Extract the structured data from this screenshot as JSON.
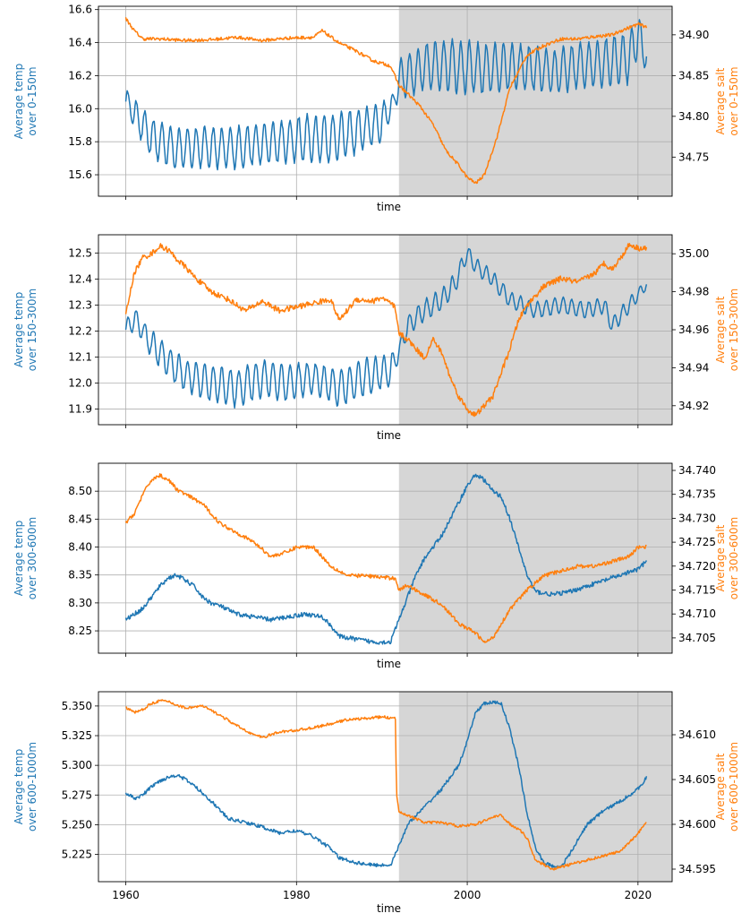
{
  "colors": {
    "temp": "#1f77b4",
    "salt": "#ff7f0e",
    "shade": "#d6d6d6",
    "grid": "#b0b0b0",
    "axis": "#000000"
  },
  "chart_data": [
    {
      "type": "line",
      "xlabel": "time",
      "xlim": [
        1956.8,
        2024.0
      ],
      "xticks": [
        1960,
        1980,
        2000,
        2020
      ],
      "shade_from": 1992,
      "left": {
        "label": [
          "Average temp",
          "over 0-150m"
        ],
        "ylim": [
          15.47,
          16.62
        ],
        "ticks": [
          "15.6",
          "15.8",
          "16.0",
          "16.2",
          "16.4",
          "16.6"
        ]
      },
      "right": {
        "label": [
          "Average salt",
          "over 0-150m"
        ],
        "ylim": [
          34.702,
          34.935
        ],
        "ticks": [
          "34.75",
          "34.80",
          "34.85",
          "34.90"
        ]
      },
      "series": [
        {
          "axis": "left",
          "x": [
            1960,
            1963,
            1966,
            1969,
            1972,
            1975,
            1978,
            1981,
            1984,
            1987,
            1990,
            1991.5,
            1992,
            1995,
            1998,
            2001,
            2004,
            2007,
            2010,
            2013,
            2016,
            2019,
            2020,
            2021
          ],
          "y": [
            16.05,
            15.82,
            15.76,
            15.77,
            15.76,
            15.78,
            15.8,
            15.82,
            15.82,
            15.86,
            15.92,
            16.05,
            16.18,
            16.25,
            16.27,
            16.24,
            16.25,
            16.25,
            16.22,
            16.26,
            16.28,
            16.31,
            16.45,
            16.32
          ],
          "amp": [
            0.07,
            0.12,
            0.12,
            0.12,
            0.12,
            0.12,
            0.12,
            0.14,
            0.15,
            0.13,
            0.12,
            0.05,
            0.12,
            0.14,
            0.16,
            0.15,
            0.14,
            0.13,
            0.13,
            0.13,
            0.14,
            0.15,
            0.12,
            0.1
          ]
        },
        {
          "axis": "right",
          "x": [
            1960,
            1961,
            1962,
            1964,
            1967,
            1970,
            1973,
            1976,
            1979,
            1982,
            1983,
            1985,
            1987,
            1989,
            1991,
            1992,
            1993,
            1994.5,
            1996,
            1997.5,
            1999,
            2000,
            2001,
            2002,
            2003.5,
            2005,
            2007,
            2009,
            2011,
            2013,
            2015,
            2017,
            2018,
            2020,
            2021
          ],
          "y": [
            34.92,
            34.905,
            34.895,
            34.895,
            34.893,
            34.894,
            34.897,
            34.893,
            34.896,
            34.897,
            34.905,
            34.89,
            34.88,
            34.868,
            34.862,
            34.838,
            34.828,
            34.812,
            34.79,
            34.758,
            34.74,
            34.725,
            34.718,
            34.728,
            34.775,
            34.835,
            34.875,
            34.887,
            34.895,
            34.895,
            34.898,
            34.9,
            34.905,
            34.913,
            34.91
          ],
          "amp": 0.002
        }
      ]
    },
    {
      "type": "line",
      "xlabel": "time",
      "xlim": [
        1956.8,
        2024.0
      ],
      "xticks": [
        1960,
        1980,
        2000,
        2020
      ],
      "shade_from": 1992,
      "left": {
        "label": [
          "Average temp",
          "over 150-300m"
        ],
        "ylim": [
          11.84,
          12.57
        ],
        "ticks": [
          "11.9",
          "12.0",
          "12.1",
          "12.2",
          "12.3",
          "12.4",
          "12.5"
        ]
      },
      "right": {
        "label": [
          "Average salt",
          "over 150-300m"
        ],
        "ylim": [
          34.91,
          35.01
        ],
        "ticks": [
          "34.92",
          "34.94",
          "34.96",
          "34.98",
          "35.00"
        ]
      },
      "series": [
        {
          "axis": "left",
          "x": [
            1960,
            1961,
            1962,
            1963,
            1965,
            1967,
            1970,
            1973,
            1976,
            1979,
            1982,
            1985,
            1988,
            1991,
            1992,
            1993,
            1995,
            1997,
            1998.5,
            2000,
            2001,
            2003,
            2005,
            2008,
            2011,
            2014,
            2016,
            2017,
            2019,
            2021
          ],
          "y": [
            12.2,
            12.25,
            12.2,
            12.15,
            12.08,
            12.03,
            12.0,
            11.98,
            12.02,
            12.0,
            12.02,
            11.98,
            12.02,
            12.05,
            12.12,
            12.22,
            12.28,
            12.32,
            12.38,
            12.5,
            12.45,
            12.4,
            12.32,
            12.28,
            12.3,
            12.28,
            12.3,
            12.22,
            12.3,
            12.38
          ],
          "amp": [
            0.04,
            0.04,
            0.04,
            0.05,
            0.06,
            0.06,
            0.07,
            0.07,
            0.07,
            0.07,
            0.06,
            0.07,
            0.07,
            0.06,
            0.03,
            0.04,
            0.04,
            0.04,
            0.04,
            0.03,
            0.03,
            0.03,
            0.03,
            0.03,
            0.03,
            0.03,
            0.03,
            0.03,
            0.03,
            0.02
          ]
        },
        {
          "axis": "right",
          "x": [
            1960,
            1961,
            1962,
            1963,
            1964,
            1965,
            1966,
            1967,
            1968,
            1970,
            1972,
            1974,
            1976,
            1978,
            1980,
            1982,
            1984,
            1985,
            1987,
            1989,
            1990,
            1991.5,
            1992,
            1993,
            1994,
            1995,
            1996,
            1997,
            1998,
            1999,
            2000,
            2001,
            2003,
            2005,
            2006,
            2007,
            2009,
            2011,
            2013,
            2015,
            2016,
            2017,
            2018,
            2019,
            2020,
            2021
          ],
          "y": [
            34.968,
            34.99,
            34.998,
            35.0,
            35.004,
            35.002,
            34.997,
            34.993,
            34.988,
            34.98,
            34.976,
            34.97,
            34.975,
            34.97,
            34.972,
            34.974,
            34.976,
            34.965,
            34.976,
            34.975,
            34.977,
            34.972,
            34.958,
            34.955,
            34.95,
            34.945,
            34.955,
            34.948,
            34.935,
            34.925,
            34.918,
            34.915,
            34.925,
            34.95,
            34.965,
            34.973,
            34.983,
            34.987,
            34.985,
            34.99,
            34.995,
            34.992,
            34.998,
            35.005,
            35.003,
            35.003
          ],
          "amp": 0.0015
        }
      ]
    },
    {
      "type": "line",
      "xlabel": "time",
      "xlim": [
        1956.8,
        2024.0
      ],
      "xticks": [
        1960,
        1980,
        2000,
        2020
      ],
      "shade_from": 1992,
      "left": {
        "label": [
          "Average temp",
          "over 300-600m"
        ],
        "ylim": [
          8.21,
          8.55
        ],
        "ticks": [
          "8.25",
          "8.30",
          "8.35",
          "8.40",
          "8.45",
          "8.50"
        ]
      },
      "right": {
        "label": [
          "Average salt",
          "over 300-600m"
        ],
        "ylim": [
          34.7018,
          34.7415
        ],
        "ticks": [
          "34.705",
          "34.710",
          "34.715",
          "34.720",
          "34.725",
          "34.730",
          "34.735",
          "34.740"
        ]
      },
      "series": [
        {
          "axis": "left",
          "x": [
            1960,
            1961,
            1962,
            1963,
            1964,
            1965,
            1966,
            1967,
            1968,
            1969,
            1970,
            1971,
            1973,
            1975,
            1977,
            1979,
            1981,
            1983,
            1984,
            1985,
            1987,
            1989,
            1991,
            1992,
            1993,
            1994,
            1995,
            1996,
            1997,
            1998,
            1999,
            2000,
            2001,
            2002,
            2003,
            2004,
            2005,
            2006,
            2007,
            2008,
            2010,
            2012,
            2014,
            2016,
            2018,
            2020,
            2021
          ],
          "y": [
            8.27,
            8.28,
            8.29,
            8.31,
            8.33,
            8.345,
            8.35,
            8.34,
            8.33,
            8.31,
            8.3,
            8.295,
            8.28,
            8.275,
            8.27,
            8.275,
            8.28,
            8.275,
            8.26,
            8.24,
            8.235,
            8.23,
            8.23,
            8.27,
            8.31,
            8.35,
            8.38,
            8.4,
            8.42,
            8.45,
            8.48,
            8.51,
            8.53,
            8.52,
            8.5,
            8.49,
            8.45,
            8.4,
            8.35,
            8.32,
            8.315,
            8.32,
            8.33,
            8.34,
            8.35,
            8.36,
            8.375
          ],
          "amp": 0.004
        },
        {
          "axis": "right",
          "x": [
            1960,
            1961,
            1962,
            1963,
            1964,
            1965,
            1966,
            1967,
            1969,
            1971,
            1973,
            1975,
            1977,
            1979,
            1980,
            1982,
            1983,
            1984,
            1986,
            1988,
            1991,
            1991.6,
            1992,
            1993,
            1995,
            1997,
            1999,
            2001,
            2002,
            2003,
            2004,
            2005,
            2007,
            2009,
            2011,
            2013,
            2015,
            2017,
            2019,
            2020,
            2021
          ],
          "y": [
            34.729,
            34.731,
            34.735,
            34.738,
            34.739,
            34.738,
            34.736,
            34.735,
            34.733,
            34.729,
            34.727,
            34.725,
            34.722,
            34.723,
            34.724,
            34.724,
            34.722,
            34.72,
            34.718,
            34.718,
            34.7175,
            34.7175,
            34.715,
            34.716,
            34.714,
            34.712,
            34.708,
            34.706,
            34.704,
            34.705,
            34.708,
            34.711,
            34.715,
            34.718,
            34.719,
            34.72,
            34.72,
            34.721,
            34.722,
            34.724,
            34.724
          ],
          "amp": 0.0004
        }
      ]
    },
    {
      "type": "line",
      "xlabel": "time",
      "xlim": [
        1956.8,
        2024.0
      ],
      "xticks": [
        1960,
        1980,
        2000,
        2020
      ],
      "shade_from": 1992,
      "left": {
        "label": [
          "Average temp",
          "over 600-1000m"
        ],
        "ylim": [
          5.202,
          5.362
        ],
        "ticks": [
          "5.225",
          "5.250",
          "5.275",
          "5.300",
          "5.325",
          "5.350"
        ]
      },
      "right": {
        "label": [
          "Average salt",
          "over 600-1000m"
        ],
        "ylim": [
          34.5936,
          34.6148
        ],
        "ticks": [
          "34.595",
          "34.600",
          "34.605",
          "34.610"
        ]
      },
      "series": [
        {
          "axis": "left",
          "x": [
            1960,
            1961,
            1962,
            1963,
            1964,
            1965,
            1966,
            1967,
            1968,
            1970,
            1972,
            1974,
            1976,
            1978,
            1980,
            1982,
            1984,
            1985,
            1987,
            1989,
            1991,
            1992,
            1993,
            1995,
            1997,
            1999,
            2000,
            2001,
            2002,
            2003,
            2004,
            2005,
            2006,
            2007,
            2008,
            2009,
            2010,
            2011,
            2012,
            2014,
            2016,
            2018,
            2020,
            2021
          ],
          "y": [
            5.277,
            5.272,
            5.275,
            5.282,
            5.287,
            5.29,
            5.292,
            5.288,
            5.283,
            5.27,
            5.255,
            5.252,
            5.248,
            5.243,
            5.245,
            5.24,
            5.23,
            5.222,
            5.218,
            5.216,
            5.216,
            5.232,
            5.25,
            5.265,
            5.28,
            5.3,
            5.32,
            5.345,
            5.352,
            5.353,
            5.352,
            5.33,
            5.3,
            5.26,
            5.23,
            5.218,
            5.215,
            5.215,
            5.225,
            5.25,
            5.262,
            5.27,
            5.28,
            5.29
          ],
          "amp": 0.0015
        },
        {
          "axis": "right",
          "x": [
            1960,
            1961,
            1962,
            1963,
            1964,
            1965,
            1966,
            1967,
            1969,
            1971,
            1973,
            1975,
            1976,
            1978,
            1980,
            1982,
            1984,
            1986,
            1988,
            1990,
            1991.6,
            1991.7,
            1992,
            1993,
            1995,
            1997,
            1999,
            2001,
            2003,
            2004,
            2005,
            2006,
            2007,
            2008,
            2009,
            2010,
            2012,
            2014,
            2016,
            2018,
            2020,
            2021
          ],
          "y": [
            34.613,
            34.6125,
            34.6128,
            34.6135,
            34.6138,
            34.6137,
            34.6133,
            34.613,
            34.6132,
            34.6122,
            34.611,
            34.61,
            34.6097,
            34.6103,
            34.6105,
            34.6108,
            34.6112,
            34.6117,
            34.6118,
            34.612,
            34.6118,
            34.6035,
            34.6015,
            34.601,
            34.6002,
            34.6002,
            34.5998,
            34.6,
            34.6008,
            34.601,
            34.6,
            34.5995,
            34.5985,
            34.596,
            34.5955,
            34.595,
            34.5955,
            34.596,
            34.5965,
            34.597,
            34.599,
            34.6003
          ],
          "amp": 0.00015
        }
      ]
    }
  ]
}
